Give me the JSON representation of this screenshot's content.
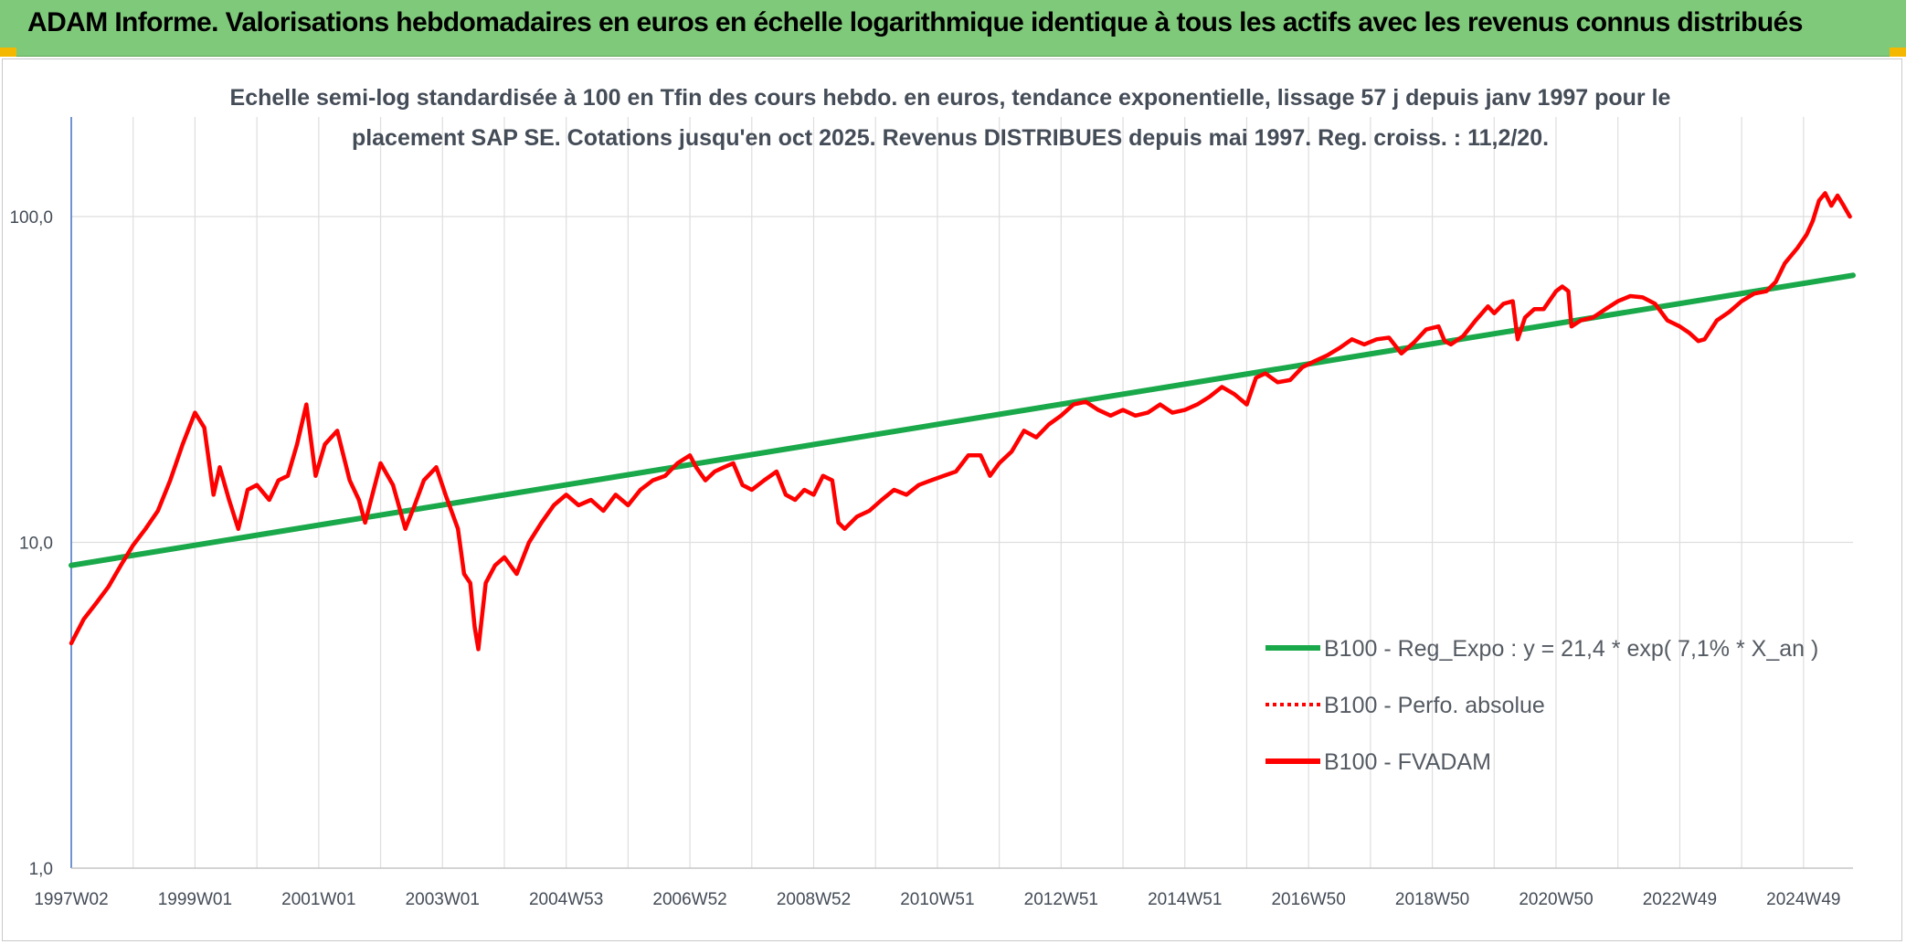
{
  "header": {
    "title": "ADAM Informe. Valorisations hebdomadaires en euros en échelle logarithmique identique à tous les actifs avec les revenus connus distribués"
  },
  "colors": {
    "banner": "#7fc97a",
    "trend": "#19a84a",
    "price": "#ff0000",
    "grid": "#dedede",
    "axis": "#4472c4"
  },
  "chart_data": {
    "type": "line",
    "subtitle_lines": [
      "Echelle semi-log standardisée à 100 en Tfin des cours hebdo. en euros, tendance exponentielle, lissage 57 j depuis janv 1997 pour le",
      "placement SAP SE. Cotations jusqu'en oct 2025. Revenus DISTRIBUES depuis mai 1997. Reg. croiss. : 11,2/20."
    ],
    "y_scale": "log",
    "ylim": [
      1,
      180
    ],
    "y_ticks": [
      {
        "value": 1,
        "label": "1,0"
      },
      {
        "value": 10,
        "label": "10,0"
      },
      {
        "value": 100,
        "label": "100,0"
      }
    ],
    "x_unit": "year",
    "xlim": [
      1997.0,
      2025.8
    ],
    "x_ticks": [
      {
        "x": 1997.0,
        "label": "1997W02"
      },
      {
        "x": 1999.0,
        "label": "1999W01"
      },
      {
        "x": 2001.0,
        "label": "2001W01"
      },
      {
        "x": 2003.0,
        "label": "2003W01"
      },
      {
        "x": 2005.0,
        "label": "2004W53"
      },
      {
        "x": 2007.0,
        "label": "2006W52"
      },
      {
        "x": 2009.0,
        "label": "2008W52"
      },
      {
        "x": 2011.0,
        "label": "2010W51"
      },
      {
        "x": 2013.0,
        "label": "2012W51"
      },
      {
        "x": 2015.0,
        "label": "2014W51"
      },
      {
        "x": 2017.0,
        "label": "2016W50"
      },
      {
        "x": 2019.0,
        "label": "2018W50"
      },
      {
        "x": 2021.0,
        "label": "2020W50"
      },
      {
        "x": 2023.0,
        "label": "2022W49"
      },
      {
        "x": 2025.0,
        "label": "2024W49"
      }
    ],
    "legend_position": "lower-right",
    "series": [
      {
        "name": "B100 - Reg_Expo : y = 21,4 * exp( 7,1% *  X_an )",
        "style": "solid",
        "color": "#19a84a",
        "points": [
          [
            1997.0,
            8.5
          ],
          [
            2025.8,
            66
          ]
        ]
      },
      {
        "name": "B100 - Perfo. absolue",
        "style": "dotted",
        "color": "#ff0000",
        "points": []
      },
      {
        "name": "B100 - FVADAM",
        "style": "solid",
        "color": "#ff0000",
        "points": [
          [
            1997.0,
            4.9
          ],
          [
            1997.2,
            5.8
          ],
          [
            1997.4,
            6.5
          ],
          [
            1997.6,
            7.3
          ],
          [
            1997.8,
            8.5
          ],
          [
            1998.0,
            9.8
          ],
          [
            1998.2,
            11.0
          ],
          [
            1998.4,
            12.5
          ],
          [
            1998.6,
            15.5
          ],
          [
            1998.8,
            20.0
          ],
          [
            1999.0,
            25.0
          ],
          [
            1999.15,
            22.5
          ],
          [
            1999.3,
            14.0
          ],
          [
            1999.4,
            17.0
          ],
          [
            1999.55,
            13.5
          ],
          [
            1999.7,
            11.0
          ],
          [
            1999.85,
            14.5
          ],
          [
            2000.0,
            15.0
          ],
          [
            2000.2,
            13.5
          ],
          [
            2000.35,
            15.5
          ],
          [
            2000.5,
            16.0
          ],
          [
            2000.65,
            20.0
          ],
          [
            2000.8,
            26.5
          ],
          [
            2000.95,
            16.0
          ],
          [
            2001.1,
            20.0
          ],
          [
            2001.3,
            22.0
          ],
          [
            2001.5,
            15.5
          ],
          [
            2001.65,
            13.5
          ],
          [
            2001.75,
            11.5
          ],
          [
            2002.0,
            17.5
          ],
          [
            2002.2,
            15.0
          ],
          [
            2002.4,
            11.0
          ],
          [
            2002.55,
            13.0
          ],
          [
            2002.7,
            15.5
          ],
          [
            2002.9,
            17.0
          ],
          [
            2003.05,
            14.0
          ],
          [
            2003.25,
            11.0
          ],
          [
            2003.35,
            8.0
          ],
          [
            2003.45,
            7.5
          ],
          [
            2003.52,
            5.5
          ],
          [
            2003.58,
            4.7
          ],
          [
            2003.7,
            7.5
          ],
          [
            2003.85,
            8.5
          ],
          [
            2004.0,
            9.0
          ],
          [
            2004.2,
            8.0
          ],
          [
            2004.4,
            10.0
          ],
          [
            2004.6,
            11.5
          ],
          [
            2004.8,
            13.0
          ],
          [
            2005.0,
            14.0
          ],
          [
            2005.2,
            13.0
          ],
          [
            2005.4,
            13.5
          ],
          [
            2005.6,
            12.5
          ],
          [
            2005.8,
            14.0
          ],
          [
            2006.0,
            13.0
          ],
          [
            2006.2,
            14.5
          ],
          [
            2006.4,
            15.5
          ],
          [
            2006.6,
            16.0
          ],
          [
            2006.8,
            17.5
          ],
          [
            2007.0,
            18.5
          ],
          [
            2007.1,
            17.0
          ],
          [
            2007.25,
            15.5
          ],
          [
            2007.4,
            16.5
          ],
          [
            2007.55,
            17.0
          ],
          [
            2007.7,
            17.5
          ],
          [
            2007.85,
            15.0
          ],
          [
            2008.0,
            14.5
          ],
          [
            2008.2,
            15.5
          ],
          [
            2008.4,
            16.5
          ],
          [
            2008.55,
            14.0
          ],
          [
            2008.7,
            13.5
          ],
          [
            2008.85,
            14.5
          ],
          [
            2009.0,
            14.0
          ],
          [
            2009.15,
            16.0
          ],
          [
            2009.3,
            15.5
          ],
          [
            2009.4,
            11.5
          ],
          [
            2009.5,
            11.0
          ],
          [
            2009.7,
            12.0
          ],
          [
            2009.9,
            12.5
          ],
          [
            2010.1,
            13.5
          ],
          [
            2010.3,
            14.5
          ],
          [
            2010.5,
            14.0
          ],
          [
            2010.7,
            15.0
          ],
          [
            2010.9,
            15.5
          ],
          [
            2011.1,
            16.0
          ],
          [
            2011.3,
            16.5
          ],
          [
            2011.5,
            18.5
          ],
          [
            2011.7,
            18.5
          ],
          [
            2011.85,
            16.0
          ],
          [
            2012.0,
            17.5
          ],
          [
            2012.2,
            19.0
          ],
          [
            2012.4,
            22.0
          ],
          [
            2012.6,
            21.0
          ],
          [
            2012.8,
            23.0
          ],
          [
            2013.0,
            24.5
          ],
          [
            2013.2,
            26.5
          ],
          [
            2013.4,
            27.0
          ],
          [
            2013.6,
            25.5
          ],
          [
            2013.8,
            24.5
          ],
          [
            2014.0,
            25.5
          ],
          [
            2014.2,
            24.5
          ],
          [
            2014.4,
            25.0
          ],
          [
            2014.6,
            26.5
          ],
          [
            2014.8,
            25.0
          ],
          [
            2015.0,
            25.5
          ],
          [
            2015.2,
            26.5
          ],
          [
            2015.4,
            28.0
          ],
          [
            2015.6,
            30.0
          ],
          [
            2015.8,
            28.5
          ],
          [
            2016.0,
            26.5
          ],
          [
            2016.15,
            32.0
          ],
          [
            2016.3,
            33.0
          ],
          [
            2016.5,
            31.0
          ],
          [
            2016.7,
            31.5
          ],
          [
            2016.9,
            34.5
          ],
          [
            2017.1,
            36.0
          ],
          [
            2017.3,
            37.5
          ],
          [
            2017.5,
            39.5
          ],
          [
            2017.7,
            42.0
          ],
          [
            2017.9,
            40.5
          ],
          [
            2018.1,
            42.0
          ],
          [
            2018.3,
            42.5
          ],
          [
            2018.5,
            38.0
          ],
          [
            2018.7,
            41.0
          ],
          [
            2018.9,
            45.0
          ],
          [
            2019.1,
            46.0
          ],
          [
            2019.2,
            41.5
          ],
          [
            2019.3,
            40.5
          ],
          [
            2019.5,
            43.0
          ],
          [
            2019.7,
            48.0
          ],
          [
            2019.9,
            53.0
          ],
          [
            2020.0,
            50.5
          ],
          [
            2020.15,
            54.0
          ],
          [
            2020.3,
            55.0
          ],
          [
            2020.38,
            42.0
          ],
          [
            2020.5,
            49.0
          ],
          [
            2020.65,
            52.0
          ],
          [
            2020.8,
            52.0
          ],
          [
            2021.0,
            59.0
          ],
          [
            2021.1,
            61.0
          ],
          [
            2021.2,
            59.0
          ],
          [
            2021.25,
            46.0
          ],
          [
            2021.4,
            48.0
          ],
          [
            2021.6,
            49.0
          ],
          [
            2021.8,
            52.0
          ],
          [
            2022.0,
            55.0
          ],
          [
            2022.2,
            57.0
          ],
          [
            2022.4,
            56.5
          ],
          [
            2022.6,
            54.0
          ],
          [
            2022.8,
            48.0
          ],
          [
            2023.0,
            46.0
          ],
          [
            2023.15,
            44.0
          ],
          [
            2023.3,
            41.5
          ],
          [
            2023.4,
            42.0
          ],
          [
            2023.6,
            48.0
          ],
          [
            2023.8,
            51.0
          ],
          [
            2024.0,
            55.0
          ],
          [
            2024.2,
            58.0
          ],
          [
            2024.4,
            59.0
          ],
          [
            2024.55,
            63.0
          ],
          [
            2024.7,
            72.0
          ],
          [
            2024.9,
            80.0
          ],
          [
            2025.05,
            88.0
          ],
          [
            2025.15,
            97.0
          ],
          [
            2025.25,
            112.0
          ],
          [
            2025.35,
            118.0
          ],
          [
            2025.45,
            108.0
          ],
          [
            2025.55,
            116.0
          ],
          [
            2025.65,
            108.0
          ],
          [
            2025.75,
            100.0
          ]
        ]
      }
    ]
  }
}
